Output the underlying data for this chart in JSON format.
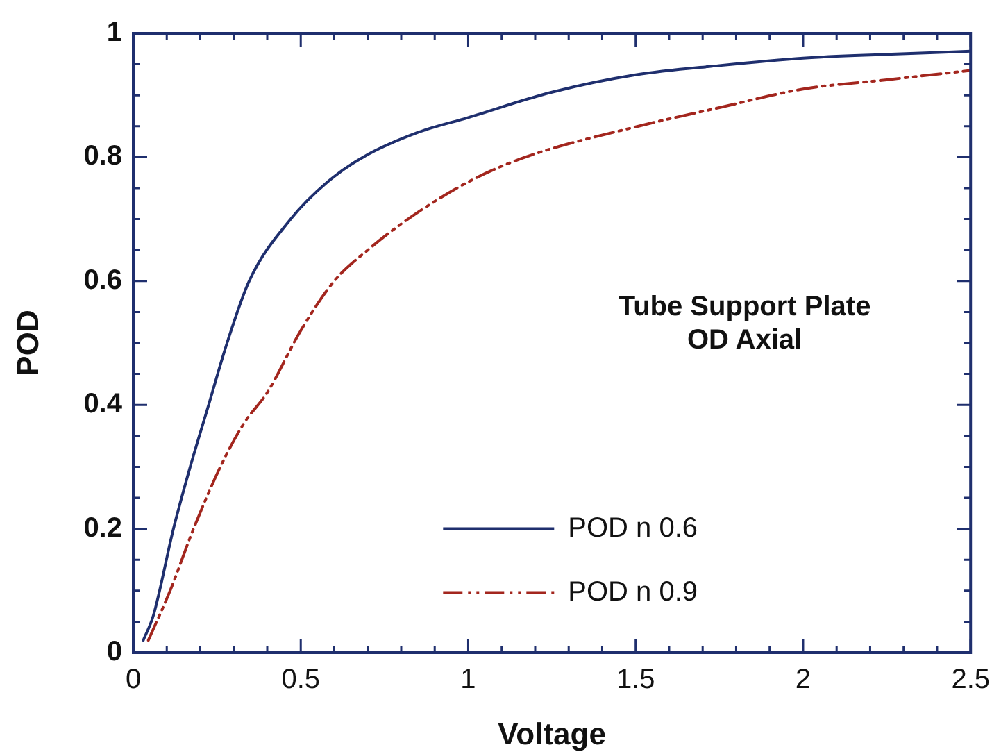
{
  "chart_data": {
    "type": "line",
    "xlabel": "Voltage",
    "ylabel": "POD",
    "annotations": [
      "Tube Support Plate\nOD Axial"
    ],
    "xlim": [
      0,
      2.5
    ],
    "ylim": [
      0,
      1
    ],
    "xticks": [
      0,
      {
        "value": 0.1,
        "label": null
      },
      {
        "value": 0.2,
        "label": null
      },
      {
        "value": 0.3,
        "label": null
      },
      {
        "value": 0.4,
        "label": null
      },
      0.5,
      {
        "value": 0.6,
        "label": null
      },
      {
        "value": 0.7,
        "label": null
      },
      {
        "value": 0.8,
        "label": null
      },
      {
        "value": 0.9,
        "label": null
      },
      1,
      {
        "value": 1.1,
        "label": null
      },
      {
        "value": 1.2,
        "label": null
      },
      {
        "value": 1.3,
        "label": null
      },
      {
        "value": 1.4,
        "label": null
      },
      1.5,
      {
        "value": 1.6,
        "label": null
      },
      {
        "value": 1.7,
        "label": null
      },
      {
        "value": 1.8,
        "label": null
      },
      {
        "value": 1.9,
        "label": null
      },
      2,
      {
        "value": 2.1,
        "label": null
      },
      {
        "value": 2.2,
        "label": null
      },
      {
        "value": 2.3,
        "label": null
      },
      {
        "value": 2.4,
        "label": null
      },
      2.5
    ],
    "yticks": [
      0,
      {
        "value": 0.05,
        "label": null
      },
      {
        "value": 0.1,
        "label": null
      },
      {
        "value": 0.15,
        "label": null
      },
      0.2,
      {
        "value": 0.25,
        "label": null
      },
      {
        "value": 0.3,
        "label": null
      },
      {
        "value": 0.35,
        "label": null
      },
      0.4,
      {
        "value": 0.45,
        "label": null
      },
      {
        "value": 0.5,
        "label": null
      },
      {
        "value": 0.55,
        "label": null
      },
      0.6,
      {
        "value": 0.65,
        "label": null
      },
      {
        "value": 0.7,
        "label": null
      },
      {
        "value": 0.75,
        "label": null
      },
      0.8,
      {
        "value": 0.85,
        "label": null
      },
      {
        "value": 0.9,
        "label": null
      },
      {
        "value": 0.95,
        "label": null
      },
      1
    ],
    "grid": false,
    "legend": "bottom right",
    "marker": "none",
    "series": [
      {
        "name": "POD n 0.6",
        "color": "#1f2f6e",
        "line_style": "solid",
        "x": [
          0.03,
          0.06,
          0.12,
          0.17,
          0.225,
          0.28,
          0.346,
          0.47,
          0.58,
          0.686,
          0.85,
          1.0,
          1.25,
          1.5,
          1.75,
          2,
          2.25,
          2.5
        ],
        "values": [
          0.02,
          0.06,
          0.2,
          0.3,
          0.4,
          0.5,
          0.6,
          0.7,
          0.76,
          0.8,
          0.84,
          0.864,
          0.905,
          0.933,
          0.948,
          0.96,
          0.966,
          0.971
        ]
      },
      {
        "name": "POD n 0.9",
        "color": "#a3261e",
        "line_style": "dashed",
        "x": [
          0.045,
          0.11,
          0.18,
          0.26,
          0.33,
          0.4,
          0.5,
          0.6,
          0.7,
          0.82,
          1.0,
          1.17,
          1.5,
          1.75,
          2,
          2.25,
          2.5
        ],
        "values": [
          0.02,
          0.1,
          0.2,
          0.3,
          0.37,
          0.42,
          0.52,
          0.6,
          0.65,
          0.7,
          0.76,
          0.8,
          0.849,
          0.88,
          0.91,
          0.925,
          0.94
        ]
      }
    ]
  }
}
